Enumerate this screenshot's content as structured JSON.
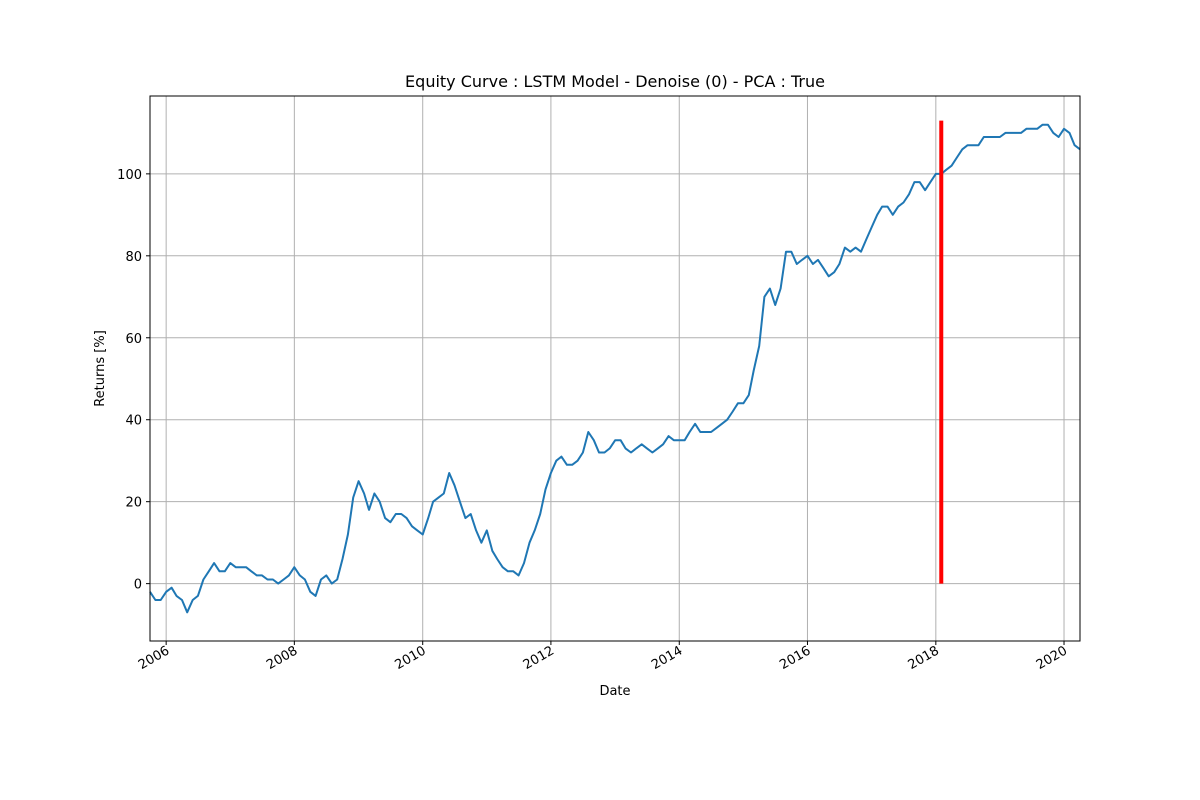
{
  "chart_data": {
    "type": "line",
    "title": "Equity Curve : LSTM Model - Denoise (0) - PCA : True",
    "xlabel": "Date",
    "ylabel": "Returns [%]",
    "xlim": [
      "2005-10-01",
      "2020-04-01"
    ],
    "ylim": [
      -14,
      119
    ],
    "grid": true,
    "x_ticks": [
      "2006",
      "2008",
      "2010",
      "2012",
      "2014",
      "2016",
      "2018",
      "2020"
    ],
    "y_ticks": [
      0,
      20,
      40,
      60,
      80,
      100
    ],
    "colors": {
      "series": "#1f77b4",
      "marker": "#ff0000",
      "grid": "#b0b0b0",
      "axes": "#000000"
    },
    "series": [
      {
        "x": [
          "2005-10-01",
          "2005-11-01",
          "2005-12-01",
          "2006-01-01",
          "2006-02-01",
          "2006-03-01",
          "2006-04-01",
          "2006-05-01",
          "2006-06-01",
          "2006-07-01",
          "2006-08-01",
          "2006-09-01",
          "2006-10-01",
          "2006-11-01",
          "2006-12-01",
          "2007-01-01",
          "2007-02-01",
          "2007-03-01",
          "2007-04-01",
          "2007-05-01",
          "2007-06-01",
          "2007-07-01",
          "2007-08-01",
          "2007-09-01",
          "2007-10-01",
          "2007-11-01",
          "2007-12-01",
          "2008-01-01",
          "2008-02-01",
          "2008-03-01",
          "2008-04-01",
          "2008-05-01",
          "2008-06-01",
          "2008-07-01",
          "2008-08-01",
          "2008-09-01",
          "2008-10-01",
          "2008-11-01",
          "2008-12-01",
          "2009-01-01",
          "2009-02-01",
          "2009-03-01",
          "2009-04-01",
          "2009-05-01",
          "2009-06-01",
          "2009-07-01",
          "2009-08-01",
          "2009-09-01",
          "2009-10-01",
          "2009-11-01",
          "2009-12-01",
          "2010-01-01",
          "2010-02-01",
          "2010-03-01",
          "2010-04-01",
          "2010-05-01",
          "2010-06-01",
          "2010-07-01",
          "2010-08-01",
          "2010-09-01",
          "2010-10-01",
          "2010-11-01",
          "2010-12-01",
          "2011-01-01",
          "2011-02-01",
          "2011-03-01",
          "2011-04-01",
          "2011-05-01",
          "2011-06-01",
          "2011-07-01",
          "2011-08-01",
          "2011-09-01",
          "2011-10-01",
          "2011-11-01",
          "2011-12-01",
          "2012-01-01",
          "2012-02-01",
          "2012-03-01",
          "2012-04-01",
          "2012-05-01",
          "2012-06-01",
          "2012-07-01",
          "2012-08-01",
          "2012-09-01",
          "2012-10-01",
          "2012-11-01",
          "2012-12-01",
          "2013-01-01",
          "2013-02-01",
          "2013-03-01",
          "2013-04-01",
          "2013-05-01",
          "2013-06-01",
          "2013-07-01",
          "2013-08-01",
          "2013-09-01",
          "2013-10-01",
          "2013-11-01",
          "2013-12-01",
          "2014-01-01",
          "2014-02-01",
          "2014-03-01",
          "2014-04-01",
          "2014-05-01",
          "2014-06-01",
          "2014-07-01",
          "2014-08-01",
          "2014-09-01",
          "2014-10-01",
          "2014-11-01",
          "2014-12-01",
          "2015-01-01",
          "2015-02-01",
          "2015-03-01",
          "2015-04-01",
          "2015-05-01",
          "2015-06-01",
          "2015-07-01",
          "2015-08-01",
          "2015-09-01",
          "2015-10-01",
          "2015-11-01",
          "2015-12-01",
          "2016-01-01",
          "2016-02-01",
          "2016-03-01",
          "2016-04-01",
          "2016-05-01",
          "2016-06-01",
          "2016-07-01",
          "2016-08-01",
          "2016-09-01",
          "2016-10-01",
          "2016-11-01",
          "2016-12-01",
          "2017-01-01",
          "2017-02-01",
          "2017-03-01",
          "2017-04-01",
          "2017-05-01",
          "2017-06-01",
          "2017-07-01",
          "2017-08-01",
          "2017-09-01",
          "2017-10-01",
          "2017-11-01",
          "2017-12-01",
          "2018-01-01",
          "2018-02-01",
          "2018-03-01",
          "2018-04-01",
          "2018-05-01",
          "2018-06-01",
          "2018-07-01",
          "2018-08-01",
          "2018-09-01",
          "2018-10-01",
          "2018-11-01",
          "2018-12-01",
          "2019-01-01",
          "2019-02-01",
          "2019-03-01",
          "2019-04-01",
          "2019-05-01",
          "2019-06-01",
          "2019-07-01",
          "2019-08-01",
          "2019-09-01",
          "2019-10-01",
          "2019-11-01",
          "2019-12-01",
          "2020-01-01",
          "2020-02-01",
          "2020-03-01",
          "2020-04-01"
        ],
        "y": [
          -2,
          -4,
          -4,
          -2,
          -1,
          -3,
          -4,
          -7,
          -4,
          -3,
          1,
          3,
          5,
          3,
          3,
          5,
          4,
          4,
          4,
          3,
          2,
          2,
          1,
          1,
          0,
          1,
          2,
          4,
          2,
          1,
          -2,
          -3,
          1,
          2,
          0,
          1,
          6,
          12,
          21,
          25,
          22,
          18,
          22,
          20,
          16,
          15,
          17,
          17,
          16,
          14,
          13,
          12,
          16,
          20,
          21,
          22,
          27,
          24,
          20,
          16,
          17,
          13,
          10,
          13,
          8,
          6,
          4,
          3,
          3,
          2,
          5,
          10,
          13,
          17,
          23,
          27,
          30,
          31,
          29,
          29,
          30,
          32,
          37,
          35,
          32,
          32,
          33,
          35,
          35,
          33,
          32,
          33,
          34,
          33,
          32,
          33,
          34,
          36,
          35,
          35,
          35,
          37,
          39,
          37,
          37,
          37,
          38,
          39,
          40,
          42,
          44,
          44,
          46,
          52,
          58,
          70,
          72,
          68,
          72,
          81,
          81,
          78,
          79,
          80,
          78,
          79,
          77,
          75,
          76,
          78,
          82,
          81,
          82,
          81,
          84,
          87,
          90,
          92,
          92,
          90,
          92,
          93,
          95,
          98,
          98,
          96,
          98,
          100,
          100,
          101,
          102,
          104,
          106,
          107,
          107,
          107,
          109,
          109,
          109,
          109,
          110,
          110,
          110,
          110,
          111,
          111,
          111,
          112,
          112,
          110,
          109,
          111,
          110,
          107,
          106
        ],
        "name": ""
      }
    ],
    "marker_line": {
      "x": "2018-02-01",
      "y_from": 0,
      "y_to": 113
    }
  }
}
